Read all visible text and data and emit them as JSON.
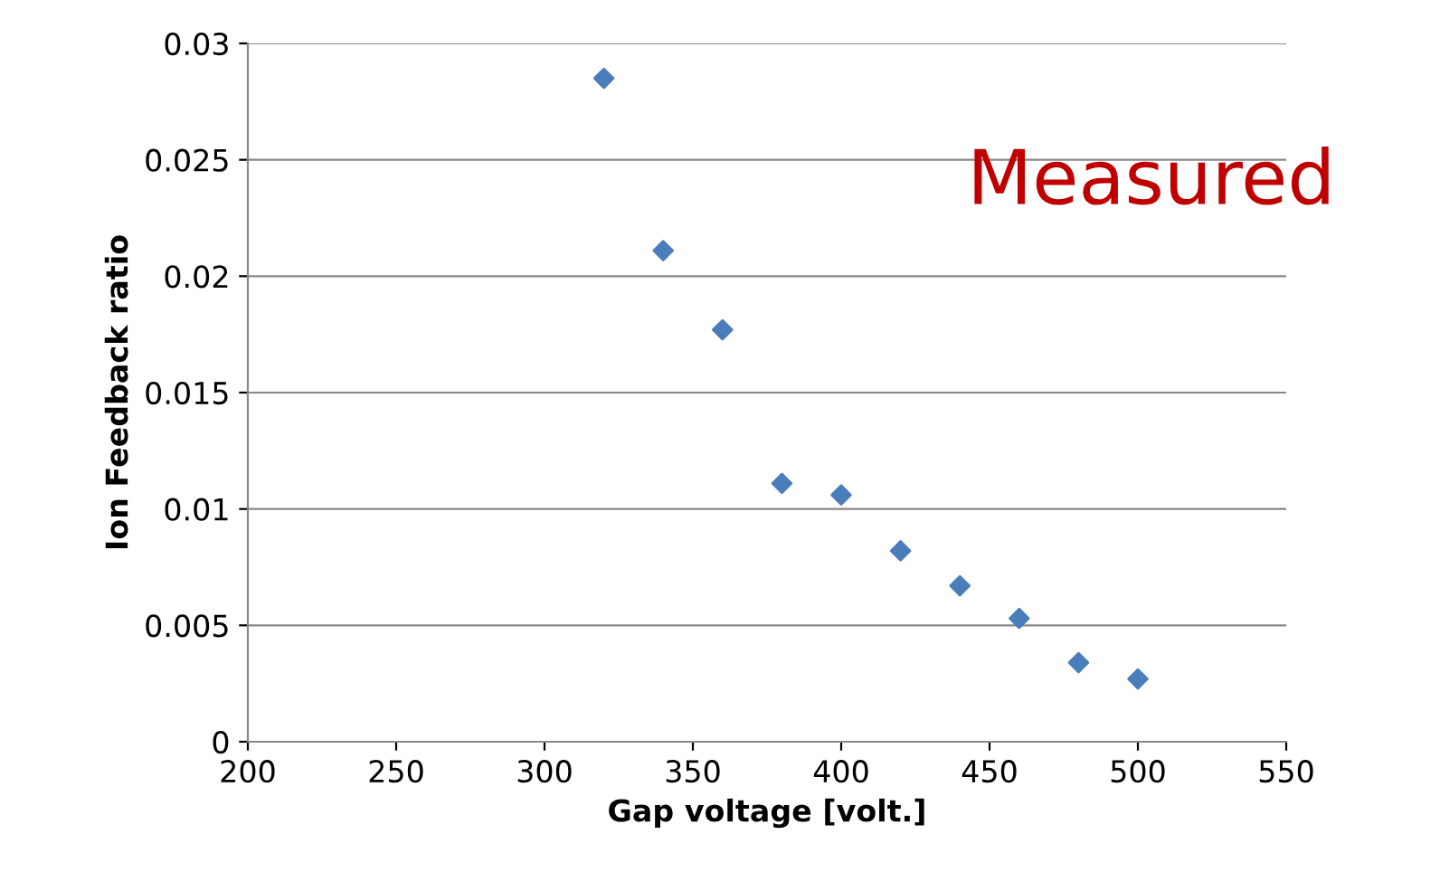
{
  "chart_data": {
    "type": "scatter",
    "xlabel": "Gap voltage [volt.]",
    "ylabel": "Ion Feedback ratio",
    "x": [
      320,
      340,
      360,
      380,
      400,
      420,
      440,
      460,
      480,
      500
    ],
    "series": [
      {
        "color": "#4a7ebb",
        "values": [
          0.0285,
          0.0211,
          0.0177,
          0.0111,
          0.0106,
          0.0082,
          0.0067,
          0.0053,
          0.0034,
          0.0027
        ]
      }
    ],
    "xlim": [
      200,
      550
    ],
    "xticks": [
      200,
      250,
      300,
      350,
      400,
      450,
      500,
      550
    ],
    "ylim": [
      0,
      0.03
    ],
    "yticks": [
      0,
      0.005,
      0.01,
      0.015,
      0.02,
      0.025,
      0.03
    ],
    "grid": "y",
    "marker": "diamond",
    "legend": false,
    "annotations": [
      "Measured"
    ]
  }
}
